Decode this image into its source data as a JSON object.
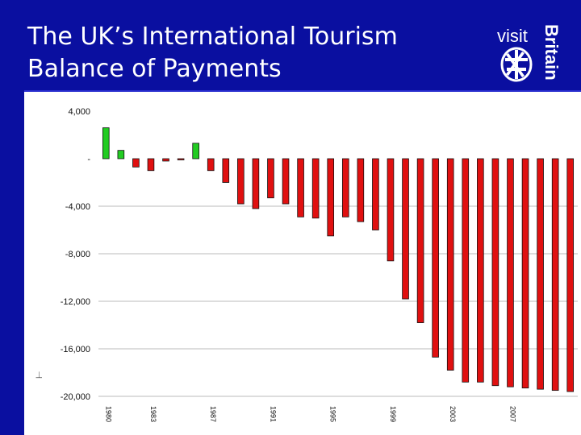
{
  "slide": {
    "title_line1": "The UK’s International Tourism",
    "title_line2": "Balance of Payments",
    "logo": {
      "word1": "visit",
      "word2": "Britain",
      "icon": "britain-logo-icon"
    },
    "background_color": "#0a0fa0"
  },
  "chart_data": {
    "type": "bar",
    "title": "",
    "xlabel": "",
    "ylabel": "",
    "ylim": [
      -20000,
      4000
    ],
    "yticks": [
      4000,
      0,
      -4000,
      -8000,
      -12000,
      -16000,
      -20000
    ],
    "ytick_labels": [
      "4,000",
      "-",
      "-4,000",
      "-8,000",
      "-12,000",
      "-16,000",
      "-20,000"
    ],
    "grid": true,
    "legend": "none",
    "x": [
      1980,
      1981,
      1982,
      1983,
      1984,
      1985,
      1986,
      1987,
      1988,
      1989,
      1990,
      1991,
      1992,
      1993,
      1994,
      1995,
      1996,
      1997,
      1998,
      1999,
      2000,
      2001,
      2002,
      2003,
      2004,
      2005,
      2006,
      2007,
      2008,
      2009,
      2010,
      2011
    ],
    "values": [
      2600,
      700,
      -700,
      -1000,
      -200,
      -100,
      1300,
      -1000,
      -2000,
      -3800,
      -4200,
      -3300,
      -3800,
      -4900,
      -5000,
      -6500,
      -4900,
      -5300,
      -6000,
      -8600,
      -11800,
      -13800,
      -16700,
      -17800,
      -18800,
      -18800,
      -19100,
      -19200,
      -19300,
      -19400,
      -19500,
      -19600
    ],
    "xtick_labels": [
      "1980",
      "1983",
      "1987",
      "1991",
      "1995",
      "1999",
      "2003",
      "2007"
    ],
    "positive_color": "#22cc22",
    "negative_color": "#e01010"
  }
}
